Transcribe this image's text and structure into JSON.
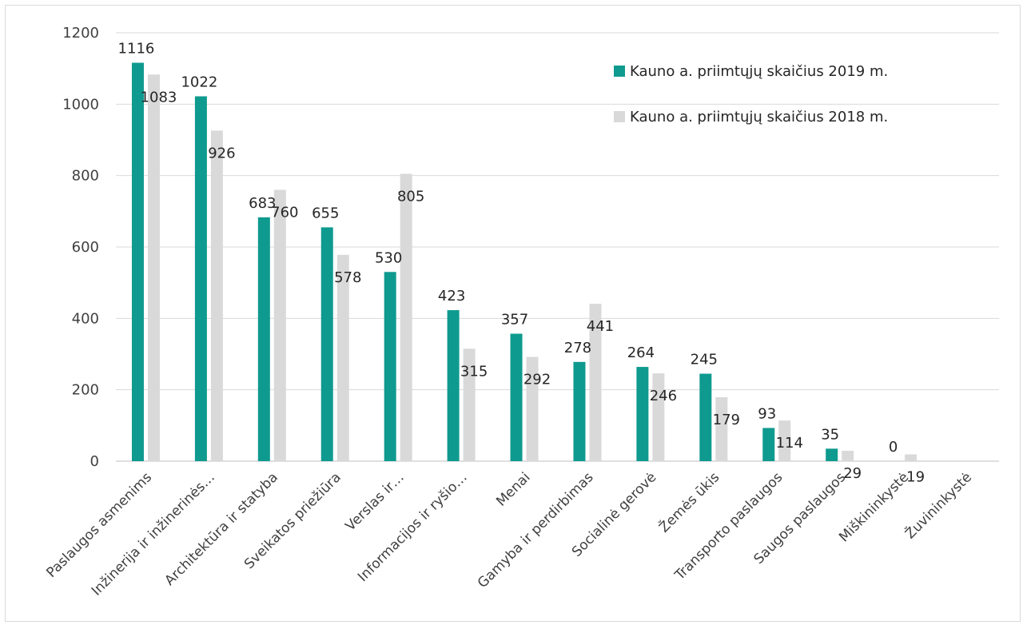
{
  "chart_data": {
    "type": "bar",
    "ylim": [
      0,
      1200
    ],
    "yticks": [
      0,
      200,
      400,
      600,
      800,
      1000,
      1200
    ],
    "grid": true,
    "legend_position": "top-right",
    "categories": [
      "Paslaugos asmenims",
      "Inžinerija ir inžinerinės…",
      "Architektūra ir statyba",
      "Sveikatos priežiūra",
      "Verslas ir…",
      "Informacijos ir ryšio…",
      "Menai",
      "Gamyba ir perdirbimas",
      "Socialinė gerovė",
      "Žemės ūkis",
      "Transporto paslaugos",
      "Saugos paslaugos",
      "Miškininkystė",
      "Žuvininkystė"
    ],
    "series": [
      {
        "name": "Kauno a. priimtųjų skaičius 2019 m.",
        "color": "#0f9a8f",
        "values": [
          1116,
          1022,
          683,
          655,
          530,
          423,
          357,
          278,
          264,
          245,
          93,
          35,
          0,
          null
        ],
        "labels": [
          "1116",
          "1022",
          "683",
          "655",
          "530",
          "423",
          "357",
          "278",
          "264",
          "245",
          "93",
          "35",
          "0",
          ""
        ]
      },
      {
        "name": "Kauno a. priimtųjų skaičius 2018 m.",
        "color": "#d9d9d9",
        "values": [
          1083,
          926,
          760,
          578,
          805,
          315,
          292,
          441,
          246,
          179,
          114,
          29,
          19,
          null
        ],
        "labels": [
          "1083",
          "926",
          "760",
          "578",
          "805",
          "315",
          "292",
          "441",
          "246",
          "179",
          "114",
          "29",
          "19",
          ""
        ]
      }
    ]
  }
}
